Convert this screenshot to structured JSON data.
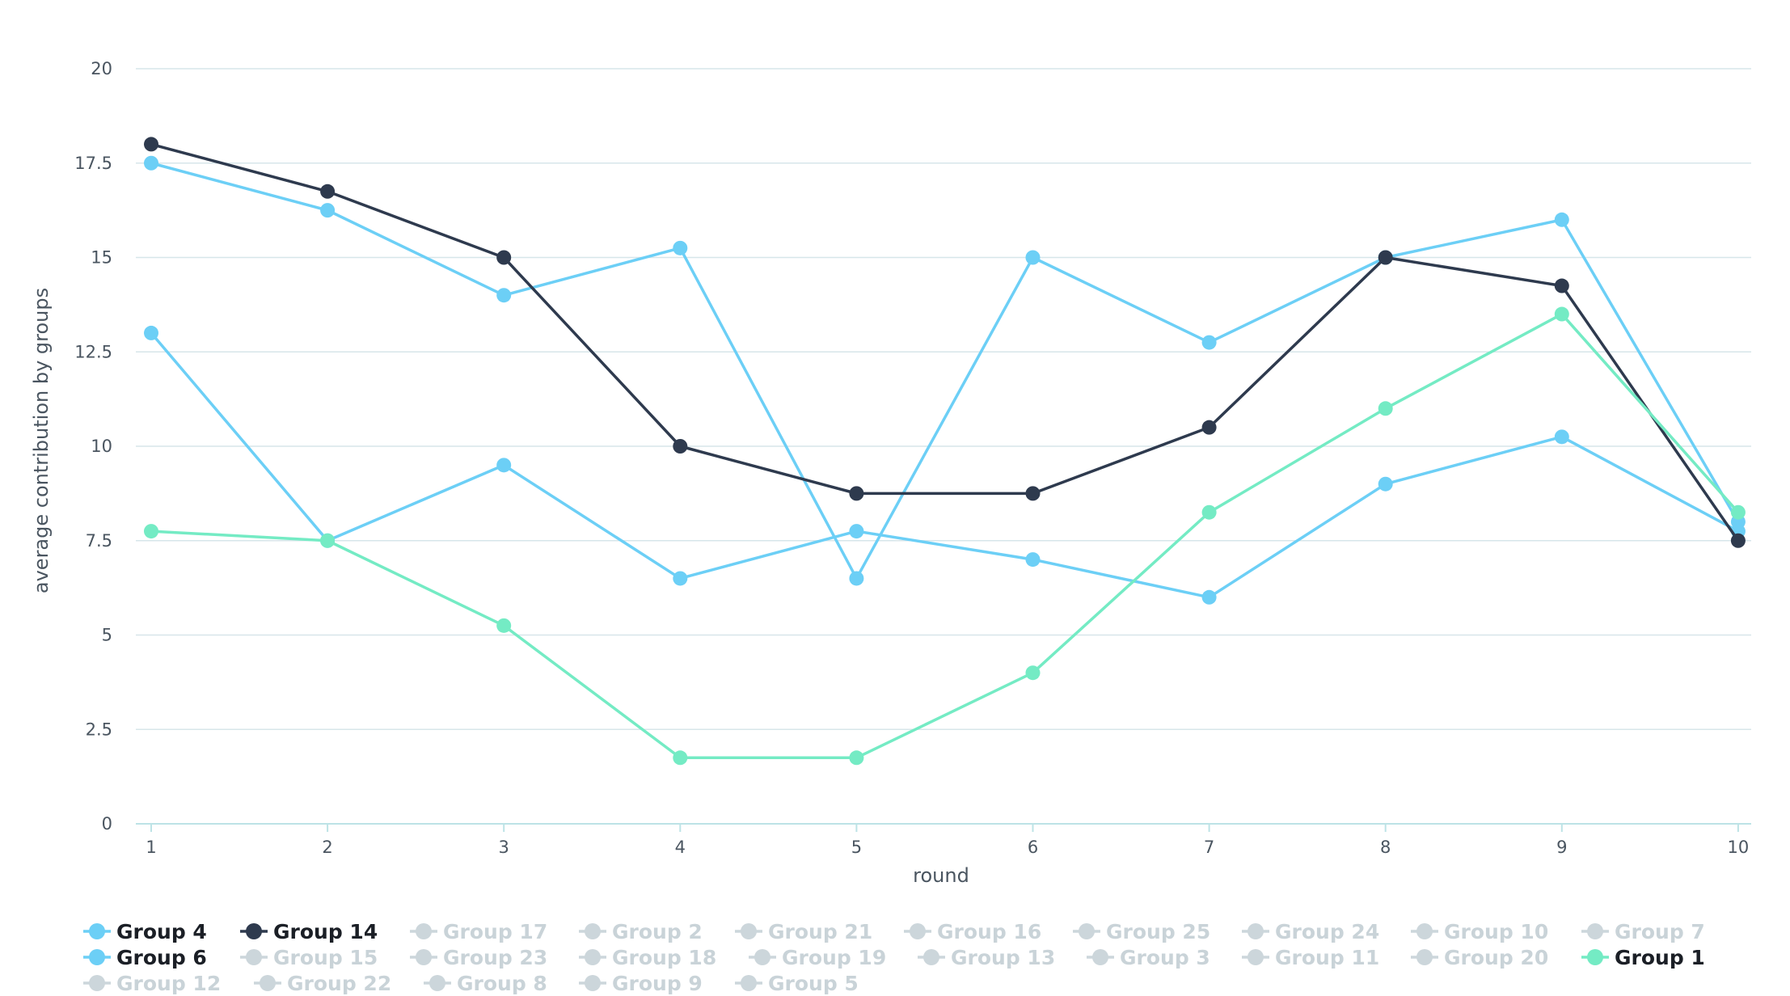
{
  "chart_data": {
    "type": "line",
    "title": "",
    "xlabel": "round",
    "ylabel": "average contribution by groups",
    "x": [
      1,
      2,
      3,
      4,
      5,
      6,
      7,
      8,
      9,
      10
    ],
    "ylim": [
      0,
      20
    ],
    "yticks": [
      "0",
      "2.5",
      "5",
      "7.5",
      "10",
      "12.5",
      "15",
      "17.5",
      "20"
    ],
    "xticks": [
      "1",
      "2",
      "3",
      "4",
      "5",
      "6",
      "7",
      "8",
      "9",
      "10"
    ],
    "grid": true,
    "legend_position": "bottom",
    "series": [
      {
        "name": "Group 4",
        "color": "#6ccff6",
        "visible": true,
        "values": [
          17.5,
          16.25,
          14,
          15.25,
          6.5,
          15,
          12.75,
          15,
          16,
          8
        ]
      },
      {
        "name": "Group 6",
        "color": "#6ccff6",
        "visible": true,
        "values": [
          13,
          7.5,
          9.5,
          6.5,
          7.75,
          7,
          6,
          9,
          10.25,
          7.75
        ]
      },
      {
        "name": "Group 14",
        "color": "#2e3a4e",
        "visible": true,
        "values": [
          18,
          16.75,
          15,
          10,
          8.75,
          8.75,
          10.5,
          15,
          14.25,
          7.5
        ]
      },
      {
        "name": "Group 1",
        "color": "#74ebc4",
        "visible": true,
        "values": [
          7.75,
          7.5,
          5.25,
          1.75,
          1.75,
          4,
          8.25,
          11,
          13.5,
          8.25
        ]
      }
    ],
    "legend": [
      [
        {
          "name": "Group 4",
          "color": "#6ccff6",
          "active": true
        },
        {
          "name": "Group 14",
          "color": "#2e3a4e",
          "active": true
        },
        {
          "name": "Group 17",
          "color": "#ccd6db",
          "active": false
        },
        {
          "name": "Group 2",
          "color": "#ccd6db",
          "active": false
        },
        {
          "name": "Group 21",
          "color": "#ccd6db",
          "active": false
        },
        {
          "name": "Group 16",
          "color": "#ccd6db",
          "active": false
        },
        {
          "name": "Group 25",
          "color": "#ccd6db",
          "active": false
        },
        {
          "name": "Group 24",
          "color": "#ccd6db",
          "active": false
        },
        {
          "name": "Group 10",
          "color": "#ccd6db",
          "active": false
        },
        {
          "name": "Group 7",
          "color": "#ccd6db",
          "active": false
        }
      ],
      [
        {
          "name": "Group 6",
          "color": "#6ccff6",
          "active": true
        },
        {
          "name": "Group 15",
          "color": "#ccd6db",
          "active": false
        },
        {
          "name": "Group 23",
          "color": "#ccd6db",
          "active": false
        },
        {
          "name": "Group 18",
          "color": "#ccd6db",
          "active": false
        },
        {
          "name": "Group 19",
          "color": "#ccd6db",
          "active": false
        },
        {
          "name": "Group 13",
          "color": "#ccd6db",
          "active": false
        },
        {
          "name": "Group 3",
          "color": "#ccd6db",
          "active": false
        },
        {
          "name": "Group 11",
          "color": "#ccd6db",
          "active": false
        },
        {
          "name": "Group 20",
          "color": "#ccd6db",
          "active": false
        },
        {
          "name": "Group 1",
          "color": "#74ebc4",
          "active": true
        }
      ],
      [
        {
          "name": "Group 12",
          "color": "#ccd6db",
          "active": false
        },
        {
          "name": "Group 22",
          "color": "#ccd6db",
          "active": false
        },
        {
          "name": "Group 8",
          "color": "#ccd6db",
          "active": false
        },
        {
          "name": "Group 9",
          "color": "#ccd6db",
          "active": false
        },
        {
          "name": "Group 5",
          "color": "#ccd6db",
          "active": false
        }
      ]
    ]
  }
}
